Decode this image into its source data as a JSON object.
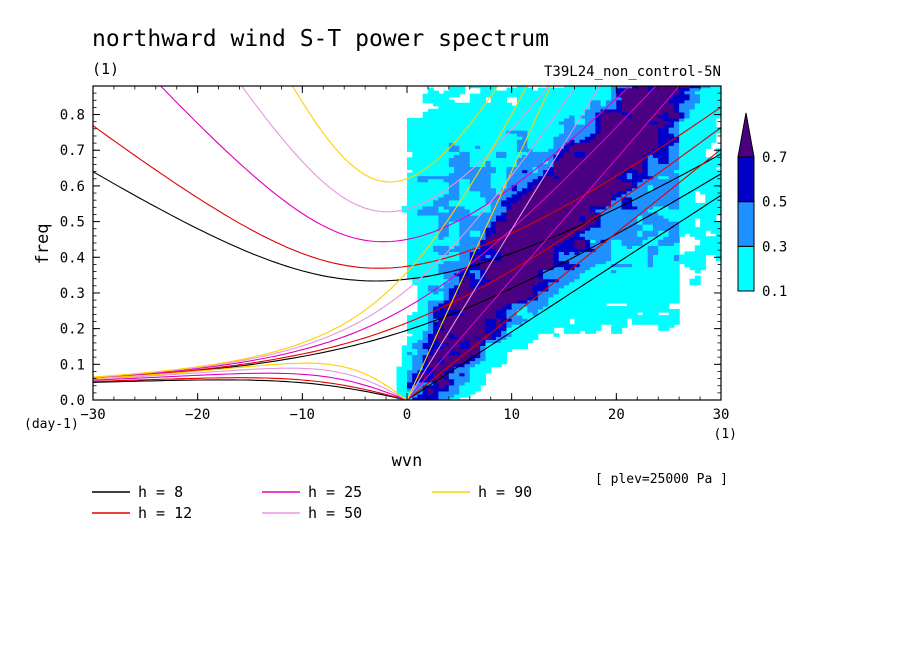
{
  "chart_data": {
    "type": "heatmap",
    "title": "northward wind S-T power spectrum",
    "title_units": "(1)",
    "run_label": "T39L24_non_control-5N",
    "xlabel": "wvn",
    "ylabel": "freq",
    "x_units": "(1)",
    "y_units": "(day-1)",
    "level_note": "[ plev=25000 Pa ]",
    "xlim": [
      -30,
      30
    ],
    "ylim": [
      0,
      0.88
    ],
    "x_ticks": [
      -30,
      -20,
      -10,
      0,
      10,
      20,
      30
    ],
    "y_ticks": [
      0.0,
      0.1,
      0.2,
      0.3,
      0.4,
      0.5,
      0.6,
      0.7,
      0.8
    ],
    "y_tick_labels": [
      "0.0",
      "0.1",
      "0.2",
      "0.3",
      "0.4",
      "0.5",
      "0.6",
      "0.7",
      "0.8"
    ],
    "colorbar": {
      "levels": [
        0.1,
        0.3,
        0.5,
        0.7
      ],
      "labels": [
        "0.1",
        "0.3",
        "0.5",
        "0.7"
      ],
      "colors": [
        "#00ffff",
        "#1e90ff",
        "#0000c8",
        "#4b0082"
      ],
      "extend": "max"
    },
    "dispersion_curves": [
      {
        "label": "h =  8",
        "h": 8,
        "color": "#000000"
      },
      {
        "label": "h = 12",
        "h": 12,
        "color": "#e00000"
      },
      {
        "label": "h = 25",
        "h": 25,
        "color": "#e000c0"
      },
      {
        "label": "h = 50",
        "h": 50,
        "color": "#e896e0"
      },
      {
        "label": "h = 90",
        "h": 90,
        "color": "#ffd000"
      }
    ],
    "curve_families": [
      "westward inertia-gravity",
      "mixed Rossby-gravity",
      "eastward inertia-gravity",
      "Kelvin"
    ],
    "power_regions": [
      {
        "level": 0.1,
        "x_range": [
          -6,
          30
        ],
        "y_range": [
          0.0,
          0.88
        ],
        "description": "broad band east of 0 wvn"
      },
      {
        "level": 0.3,
        "x_range": [
          1,
          26
        ],
        "y_range": [
          0.02,
          0.88
        ]
      },
      {
        "level": 0.5,
        "x_range": [
          1,
          20
        ],
        "y_range": [
          0.02,
          0.88
        ]
      },
      {
        "level": 0.7,
        "x_range": [
          1.5,
          8
        ],
        "y_range": [
          0.02,
          0.3
        ],
        "description": "peak along Kelvin-like ridge"
      }
    ]
  }
}
